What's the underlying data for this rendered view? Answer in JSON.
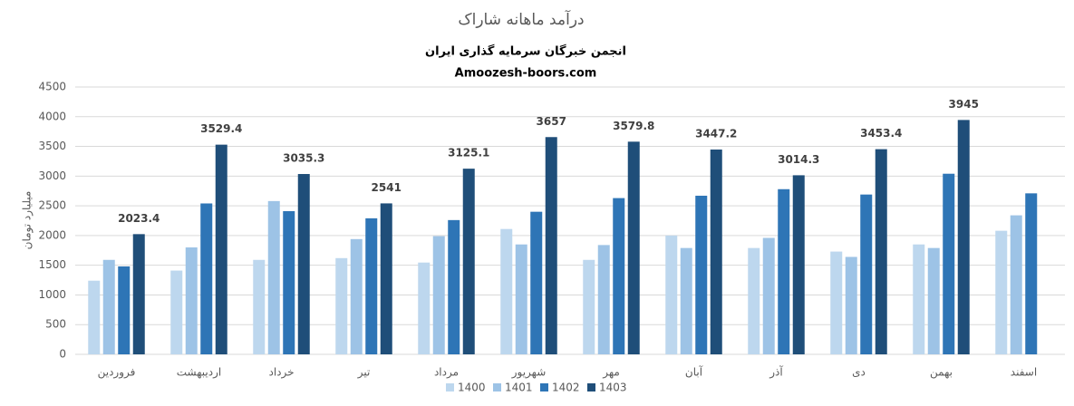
{
  "chart_data": {
    "type": "bar",
    "title": "درآمد ماهانه شاراک",
    "subtitle": "انجمن خبرگان سرمایه گذاری ایران",
    "subtitle2": "Amoozesh-boors.com",
    "y_label": "میلیارد تومان",
    "categories": [
      "فروردین",
      "اردیبهشت",
      "خرداد",
      "تیر",
      "مرداد",
      "شهریور",
      "مهر",
      "آبان",
      "آذر",
      "دی",
      "بهمن",
      "اسفند"
    ],
    "series": [
      {
        "name": "1400",
        "color": "#bdd7ee",
        "values": [
          1240,
          1410,
          1590,
          1620,
          1545,
          2110,
          1590,
          2000,
          1790,
          1730,
          1850,
          2080
        ]
      },
      {
        "name": "1401",
        "color": "#9dc3e6",
        "values": [
          1590,
          1800,
          2580,
          1940,
          1990,
          1850,
          1840,
          1790,
          1960,
          1640,
          1790,
          2340
        ]
      },
      {
        "name": "1402",
        "color": "#2e75b6",
        "values": [
          1480,
          2540,
          2410,
          2290,
          2260,
          2400,
          2630,
          2670,
          2780,
          2690,
          3040,
          2710
        ]
      },
      {
        "name": "1403",
        "color": "#1f4e79",
        "show_labels": true,
        "values": [
          2023.4,
          3529.4,
          3035.3,
          2541,
          3125.1,
          3657,
          3579.8,
          3447.2,
          3014.3,
          3453.4,
          3945,
          null
        ]
      }
    ],
    "ylim": [
      0,
      4500
    ],
    "yticks": [
      0,
      500,
      1000,
      1500,
      2000,
      2500,
      3000,
      3500,
      4000,
      4500
    ],
    "grid": true,
    "legend": "bottom"
  }
}
